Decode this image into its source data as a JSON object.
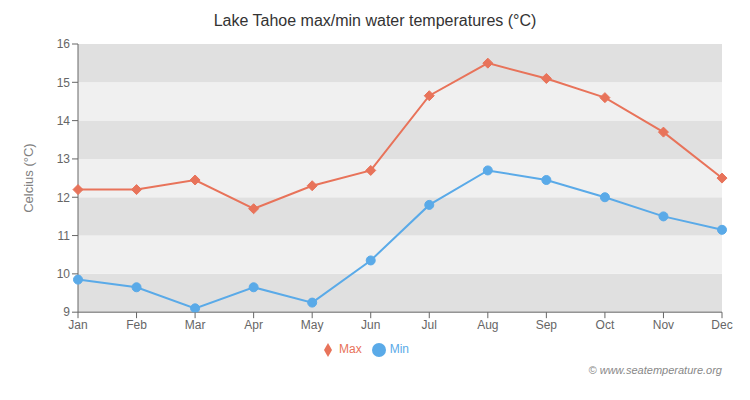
{
  "chart_data": {
    "type": "line",
    "title": "Lake Tahoe max/min water temperatures (°C)",
    "ylabel": "Celcius (°C)",
    "categories": [
      "Jan",
      "Feb",
      "Mar",
      "Apr",
      "May",
      "Jun",
      "Jul",
      "Aug",
      "Sep",
      "Oct",
      "Nov",
      "Dec"
    ],
    "series": [
      {
        "name": "Max",
        "color": "#e8735a",
        "marker": "diamond",
        "values": [
          12.2,
          12.2,
          12.45,
          11.7,
          12.3,
          12.7,
          14.65,
          15.5,
          15.1,
          14.6,
          13.7,
          12.5
        ]
      },
      {
        "name": "Min",
        "color": "#5aaae8",
        "marker": "circle",
        "values": [
          9.85,
          9.65,
          9.1,
          9.65,
          9.25,
          10.35,
          11.8,
          12.7,
          12.45,
          12.0,
          11.5,
          11.15
        ]
      }
    ],
    "ylim": [
      9.0,
      16.0
    ],
    "yticks": [
      9,
      10,
      11,
      12,
      13,
      14,
      15,
      16
    ],
    "grid": false,
    "legend": "bottom",
    "annotations": [
      "© www.seatemperature.org"
    ]
  }
}
